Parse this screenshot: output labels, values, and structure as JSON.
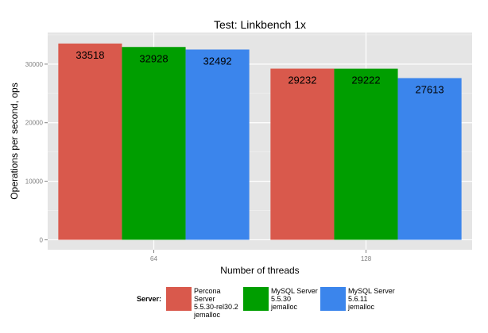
{
  "chart_data": {
    "type": "bar",
    "title": "Test: Linkbench 1x",
    "xlabel": "Number of threads",
    "ylabel": "Operations per second, ops",
    "categories": [
      "64",
      "128"
    ],
    "series": [
      {
        "name": "Percona Server\n5.5.30-rel30.2\njemalloc",
        "color": "#d9594c",
        "values": [
          33518,
          29232
        ]
      },
      {
        "name": "MySQL Server\n5.5.30\njemalloc",
        "color": "#009e00",
        "values": [
          32928,
          29222
        ]
      },
      {
        "name": "MySQL Server\n5.6.11\njemalloc",
        "color": "#3b85ec",
        "values": [
          32492,
          27613
        ]
      }
    ],
    "ylim": [
      -1700,
      35400
    ],
    "yticks": [
      0,
      10000,
      20000,
      30000
    ],
    "grid": true,
    "legend_title": "Server:",
    "legend_position": "bottom"
  }
}
